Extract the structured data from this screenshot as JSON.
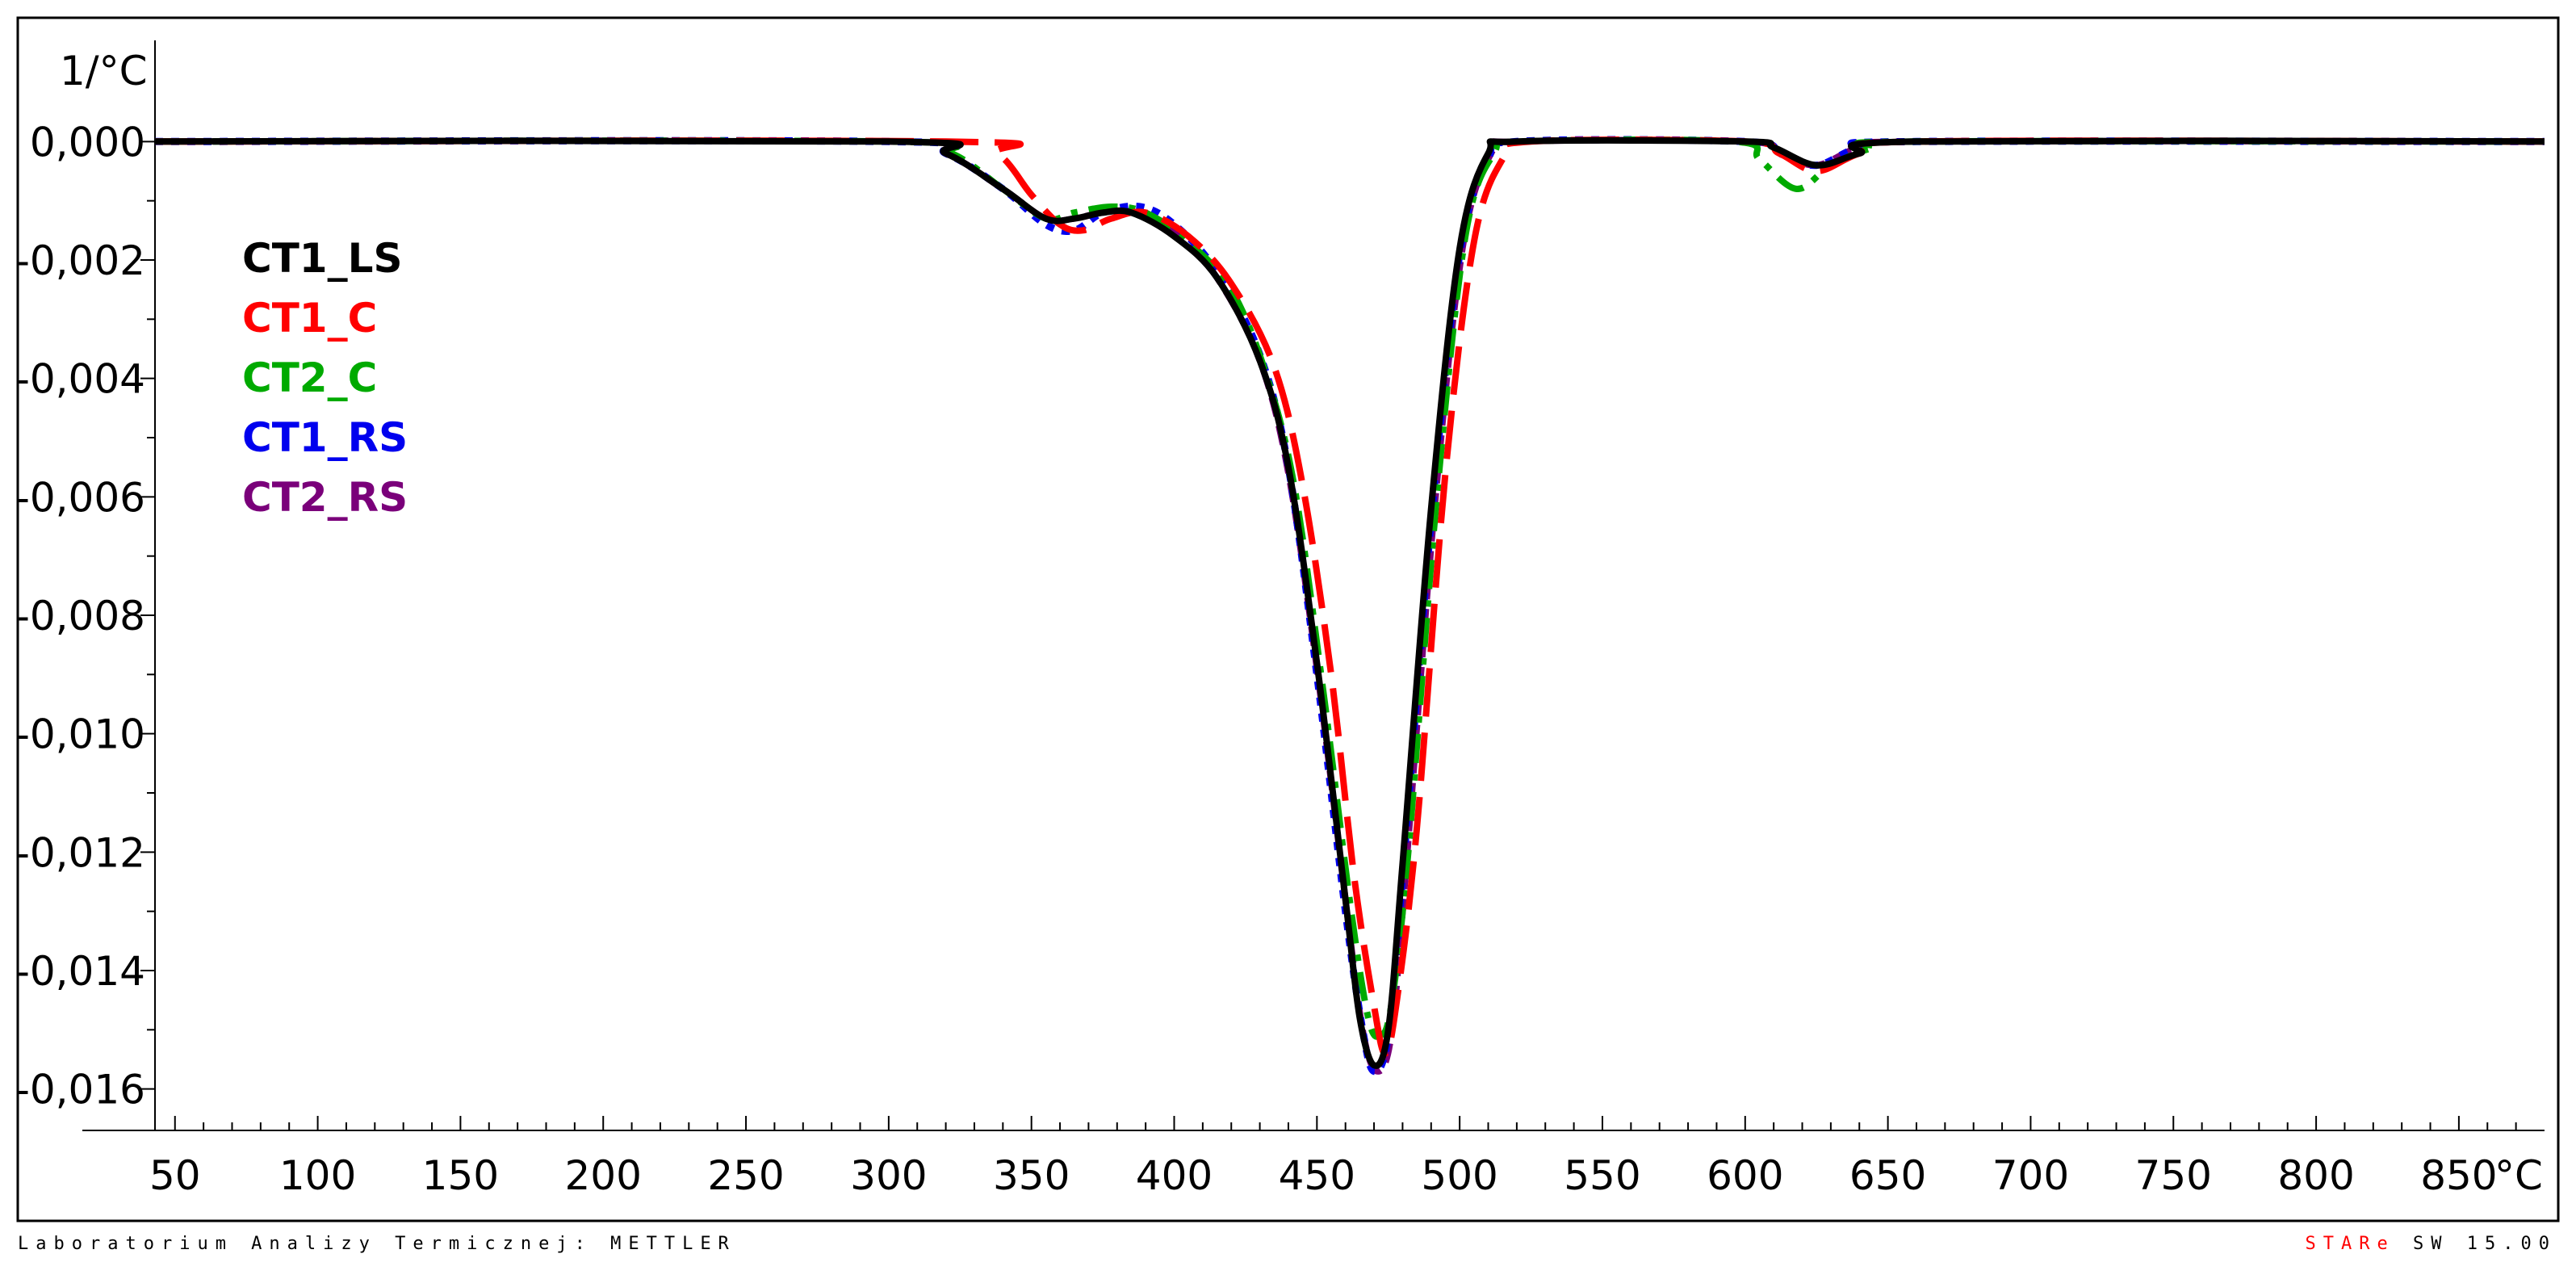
{
  "footer": {
    "lab": "Laboratorium Analizy Termicznej: METTLER",
    "software_star": "STAR",
    "software_e": "e",
    "software_rest": " SW 15.00"
  },
  "chart_data": {
    "type": "line",
    "title": "",
    "xlabel": "°C",
    "ylabel": "1/°C",
    "xlim": [
      43,
      880
    ],
    "ylim": [
      -0.0167,
      0.0016
    ],
    "x_ticks": [
      50,
      100,
      150,
      200,
      250,
      300,
      350,
      400,
      450,
      500,
      550,
      600,
      650,
      700,
      750,
      800,
      850
    ],
    "y_ticks": [
      {
        "value": 0.0,
        "label": "0,000"
      },
      {
        "value": -0.002,
        "label": "-0,002"
      },
      {
        "value": -0.004,
        "label": "-0,004"
      },
      {
        "value": -0.006,
        "label": "-0,006"
      },
      {
        "value": -0.008,
        "label": "-0,008"
      },
      {
        "value": -0.01,
        "label": "-0,010"
      },
      {
        "value": -0.012,
        "label": "-0,012"
      },
      {
        "value": -0.014,
        "label": "-0,014"
      },
      {
        "value": -0.016,
        "label": "-0,016"
      }
    ],
    "grid": false,
    "legend": "upper-left",
    "series": [
      {
        "name": "CT1_LS",
        "color": "#000000",
        "style": "solid",
        "points": [
          [
            43,
            0
          ],
          [
            300,
            0
          ],
          [
            320,
            -0.0002
          ],
          [
            340,
            -0.0008
          ],
          [
            355,
            -0.0013
          ],
          [
            365,
            -0.0013
          ],
          [
            375,
            -0.0012
          ],
          [
            385,
            -0.0012
          ],
          [
            400,
            -0.0016
          ],
          [
            415,
            -0.0023
          ],
          [
            430,
            -0.0037
          ],
          [
            440,
            -0.0055
          ],
          [
            450,
            -0.0088
          ],
          [
            460,
            -0.0128
          ],
          [
            465,
            -0.0148
          ],
          [
            470,
            -0.0156
          ],
          [
            475,
            -0.015
          ],
          [
            480,
            -0.0122
          ],
          [
            490,
            -0.0062
          ],
          [
            500,
            -0.0018
          ],
          [
            510,
            -0.0002
          ],
          [
            520,
            0
          ],
          [
            600,
            0
          ],
          [
            610,
            -0.0001
          ],
          [
            625,
            -0.0004
          ],
          [
            640,
            -0.0002
          ],
          [
            660,
            0
          ],
          [
            880,
            0
          ]
        ]
      },
      {
        "name": "CT1_C",
        "color": "#ff0000",
        "style": "longdash",
        "points": [
          [
            43,
            0
          ],
          [
            320,
            0
          ],
          [
            338,
            -0.0002
          ],
          [
            350,
            -0.0009
          ],
          [
            360,
            -0.0014
          ],
          [
            368,
            -0.0015
          ],
          [
            378,
            -0.0013
          ],
          [
            390,
            -0.0012
          ],
          [
            405,
            -0.0016
          ],
          [
            420,
            -0.0024
          ],
          [
            435,
            -0.0038
          ],
          [
            445,
            -0.0058
          ],
          [
            455,
            -0.009
          ],
          [
            463,
            -0.0124
          ],
          [
            470,
            -0.0146
          ],
          [
            474,
            -0.0154
          ],
          [
            478,
            -0.0145
          ],
          [
            485,
            -0.0116
          ],
          [
            495,
            -0.0056
          ],
          [
            505,
            -0.0017
          ],
          [
            515,
            -0.0003
          ],
          [
            525,
            0
          ],
          [
            600,
            0
          ],
          [
            612,
            -0.0002
          ],
          [
            625,
            -0.0005
          ],
          [
            640,
            -0.0002
          ],
          [
            660,
            0
          ],
          [
            880,
            0
          ]
        ]
      },
      {
        "name": "CT2_C",
        "color": "#00aa00",
        "style": "dashdot",
        "points": [
          [
            43,
            0
          ],
          [
            300,
            0
          ],
          [
            322,
            -0.0002
          ],
          [
            340,
            -0.0008
          ],
          [
            355,
            -0.0013
          ],
          [
            365,
            -0.0012
          ],
          [
            378,
            -0.0011
          ],
          [
            390,
            -0.0012
          ],
          [
            405,
            -0.0017
          ],
          [
            420,
            -0.0025
          ],
          [
            432,
            -0.0039
          ],
          [
            442,
            -0.0058
          ],
          [
            452,
            -0.0092
          ],
          [
            462,
            -0.013
          ],
          [
            468,
            -0.0148
          ],
          [
            472,
            -0.0151
          ],
          [
            476,
            -0.0146
          ],
          [
            482,
            -0.012
          ],
          [
            492,
            -0.006
          ],
          [
            502,
            -0.0016
          ],
          [
            512,
            -0.0002
          ],
          [
            522,
            0
          ],
          [
            596,
            0
          ],
          [
            605,
            -0.0003
          ],
          [
            618,
            -0.0008
          ],
          [
            630,
            -0.0004
          ],
          [
            645,
            -0.0001
          ],
          [
            660,
            0
          ],
          [
            880,
            0
          ]
        ]
      },
      {
        "name": "CT1_RS",
        "color": "#0000ee",
        "style": "dotted",
        "points": [
          [
            43,
            0
          ],
          [
            300,
            0
          ],
          [
            320,
            -0.0002
          ],
          [
            340,
            -0.0008
          ],
          [
            355,
            -0.0014
          ],
          [
            365,
            -0.0015
          ],
          [
            375,
            -0.0012
          ],
          [
            388,
            -0.0011
          ],
          [
            400,
            -0.0014
          ],
          [
            415,
            -0.0022
          ],
          [
            430,
            -0.0036
          ],
          [
            440,
            -0.0055
          ],
          [
            450,
            -0.009
          ],
          [
            460,
            -0.013
          ],
          [
            466,
            -0.015
          ],
          [
            470,
            -0.0157
          ],
          [
            475,
            -0.0151
          ],
          [
            480,
            -0.0124
          ],
          [
            490,
            -0.0064
          ],
          [
            500,
            -0.0019
          ],
          [
            510,
            -0.0003
          ],
          [
            520,
            0
          ],
          [
            600,
            0
          ],
          [
            612,
            -0.0002
          ],
          [
            625,
            -0.0004
          ],
          [
            640,
            -0.0001
          ],
          [
            660,
            0
          ],
          [
            880,
            0
          ]
        ]
      },
      {
        "name": "CT2_RS",
        "color": "#7a007a",
        "style": "dashed",
        "points": [
          [
            43,
            0
          ],
          [
            300,
            0
          ],
          [
            320,
            -0.0002
          ],
          [
            340,
            -0.0008
          ],
          [
            355,
            -0.0013
          ],
          [
            365,
            -0.0013
          ],
          [
            375,
            -0.0012
          ],
          [
            388,
            -0.0012
          ],
          [
            400,
            -0.0015
          ],
          [
            415,
            -0.0023
          ],
          [
            430,
            -0.0037
          ],
          [
            440,
            -0.0056
          ],
          [
            450,
            -0.0089
          ],
          [
            460,
            -0.0128
          ],
          [
            466,
            -0.015
          ],
          [
            471,
            -0.0157
          ],
          [
            476,
            -0.0151
          ],
          [
            481,
            -0.0124
          ],
          [
            491,
            -0.0063
          ],
          [
            501,
            -0.0018
          ],
          [
            511,
            -0.0002
          ],
          [
            521,
            0
          ],
          [
            600,
            0
          ],
          [
            612,
            -0.0002
          ],
          [
            625,
            -0.0004
          ],
          [
            640,
            -0.0001
          ],
          [
            660,
            0
          ],
          [
            880,
            0
          ]
        ]
      }
    ]
  }
}
